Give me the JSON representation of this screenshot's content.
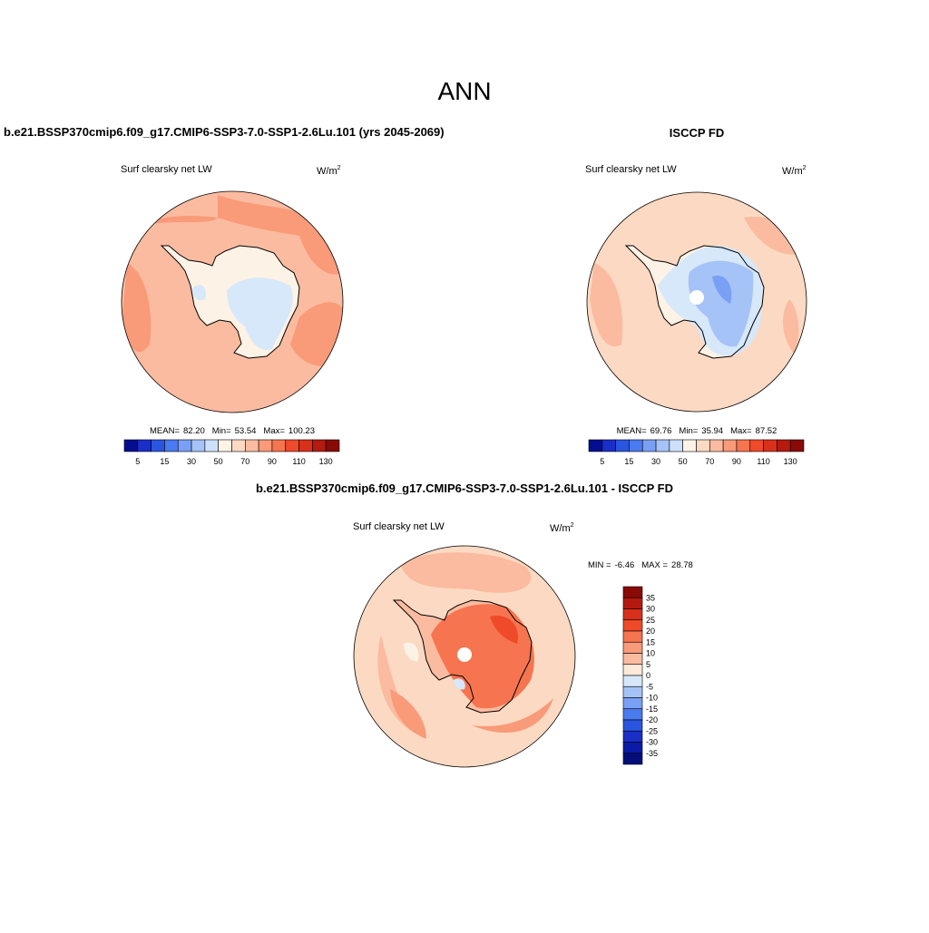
{
  "title": "ANN",
  "panels": [
    {
      "heading": "b.e21.BSSP370cmip6.f09_g17.CMIP6-SSP3-7.0-SSP1-2.6Lu.101 (yrs 2045-2069)",
      "variable": "Surf clearsky net LW",
      "units": "W/m",
      "units_exponent": "2",
      "stats": [
        {
          "label": "MEAN=",
          "value": "82.20"
        },
        {
          "label": "Min=",
          "value": "53.54"
        },
        {
          "label": "Max=",
          "value": "100.23"
        }
      ],
      "colorbar": {
        "colors": [
          "#040e8f",
          "#1a2ec8",
          "#2a55e0",
          "#4a7af0",
          "#7aa0f5",
          "#a6c3f7",
          "#cde0fb",
          "#fdf2e6",
          "#fcd9c2",
          "#fbbba0",
          "#f99a78",
          "#f6744f",
          "#ef4a2a",
          "#d8301a",
          "#b41a10",
          "#8a0a06"
        ],
        "labels": [
          "5",
          "15",
          "30",
          "50",
          "70",
          "90",
          "110",
          "130"
        ]
      }
    },
    {
      "heading": "ISCCP FD",
      "variable": "Surf clearsky net LW",
      "units": "W/m",
      "units_exponent": "2",
      "stats": [
        {
          "label": "MEAN=",
          "value": "69.76"
        },
        {
          "label": "Min=",
          "value": "35.94"
        },
        {
          "label": "Max=",
          "value": "87.52"
        }
      ],
      "colorbar": {
        "colors": [
          "#040e8f",
          "#1a2ec8",
          "#2a55e0",
          "#4a7af0",
          "#7aa0f5",
          "#a6c3f7",
          "#cde0fb",
          "#fdf2e6",
          "#fcd9c2",
          "#fbbba0",
          "#f99a78",
          "#f6744f",
          "#ef4a2a",
          "#d8301a",
          "#b41a10",
          "#8a0a06"
        ],
        "labels": [
          "5",
          "15",
          "30",
          "50",
          "70",
          "90",
          "110",
          "130"
        ]
      }
    }
  ],
  "difference": {
    "heading": "b.e21.BSSP370cmip6.f09_g17.CMIP6-SSP3-7.0-SSP1-2.6Lu.101 - ISCCP FD",
    "variable": "Surf clearsky net LW",
    "units": "W/m",
    "units_exponent": "2",
    "stats": [
      {
        "label": "MIN =",
        "value": "-6.46"
      },
      {
        "label": "MAX =",
        "value": "28.78"
      }
    ],
    "colorbar": {
      "colors": [
        "#8a0a06",
        "#b41a10",
        "#d8301a",
        "#ef4a2a",
        "#f6744f",
        "#f99a78",
        "#fbbba0",
        "#fde9da",
        "#d6e8fa",
        "#a6c3f7",
        "#7aa0f5",
        "#4a7af0",
        "#2a55e0",
        "#1a2ec8",
        "#0c1aa8",
        "#040e7a"
      ],
      "labels": [
        "35",
        "30",
        "25",
        "20",
        "15",
        "10",
        "5",
        "0",
        "-5",
        "-10",
        "-15",
        "-20",
        "-25",
        "-30",
        "-35"
      ]
    }
  }
}
